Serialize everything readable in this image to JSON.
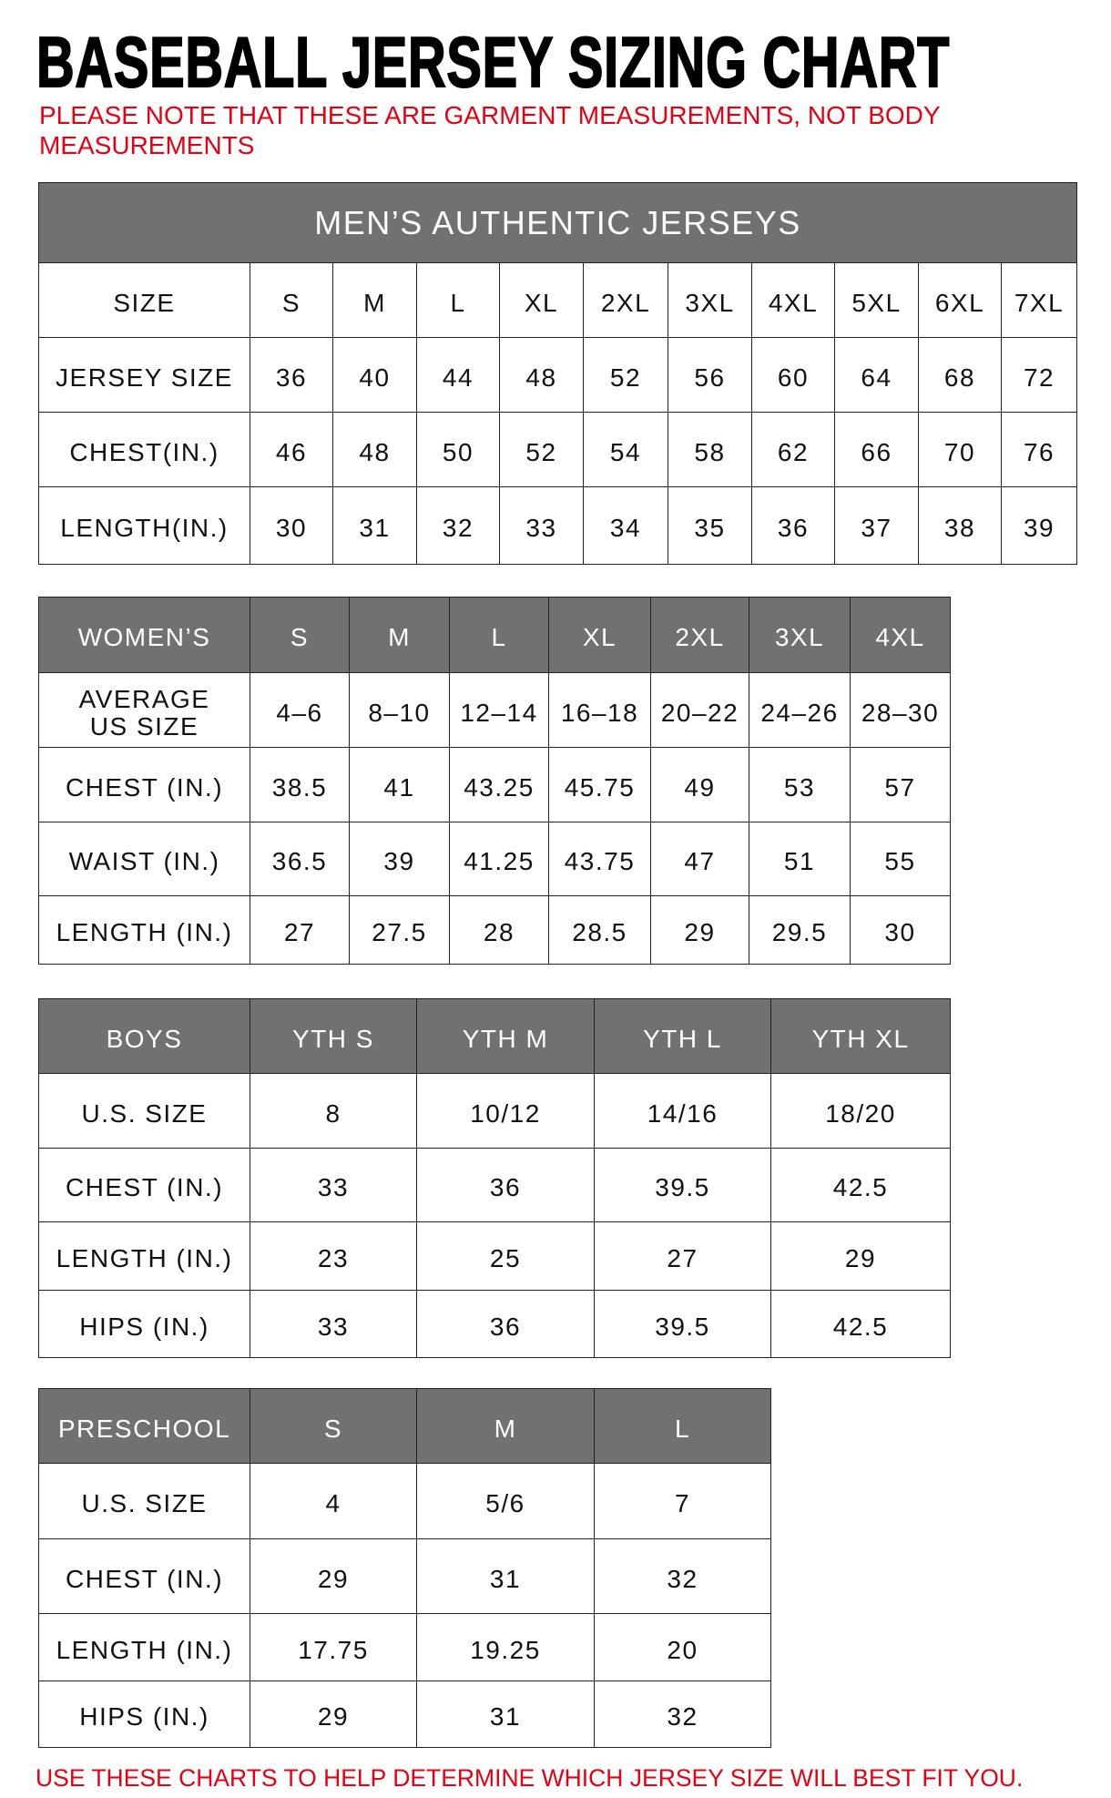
{
  "title": "BASEBALL JERSEY SIZING CHART",
  "note": "PLEASE NOTE THAT THESE ARE GARMENT MEASUREMENTS, NOT BODY MEASUREMENTS",
  "footer": "USE THESE CHARTS TO HELP DETERMINE WHICH JERSEY SIZE WILL BEST FIT YOU.",
  "colors": {
    "header_gray": "#717171",
    "note_red": "#e60012"
  },
  "tables": [
    {
      "id": "mens",
      "banner": "MEN’S AUTHENTIC JERSEYS",
      "header_shaded": false,
      "rows": [
        [
          "SIZE",
          "S",
          "M",
          "L",
          "XL",
          "2XL",
          "3XL",
          "4XL",
          "5XL",
          "6XL",
          "7XL"
        ],
        [
          "JERSEY SIZE",
          "36",
          "40",
          "44",
          "48",
          "52",
          "56",
          "60",
          "64",
          "68",
          "72"
        ],
        [
          "CHEST(IN.)",
          "46",
          "48",
          "50",
          "52",
          "54",
          "58",
          "62",
          "66",
          "70",
          "76"
        ],
        [
          "LENGTH(IN.)",
          "30",
          "31",
          "32",
          "33",
          "34",
          "35",
          "36",
          "37",
          "38",
          "39"
        ]
      ]
    },
    {
      "id": "womens",
      "header_shaded": true,
      "rows": [
        [
          "WOMEN’S",
          "S",
          "M",
          "L",
          "XL",
          "2XL",
          "3XL",
          "4XL"
        ],
        [
          "AVERAGE\nUS SIZE",
          "4–6",
          "8–10",
          "12–14",
          "16–18",
          "20–22",
          "24–26",
          "28–30"
        ],
        [
          "CHEST (IN.)",
          "38.5",
          "41",
          "43.25",
          "45.75",
          "49",
          "53",
          "57"
        ],
        [
          "WAIST (IN.)",
          "36.5",
          "39",
          "41.25",
          "43.75",
          "47",
          "51",
          "55"
        ],
        [
          "LENGTH (IN.)",
          "27",
          "27.5",
          "28",
          "28.5",
          "29",
          "29.5",
          "30"
        ]
      ]
    },
    {
      "id": "boys",
      "header_shaded": true,
      "rows": [
        [
          "BOYS",
          "YTH S",
          "YTH M",
          "YTH L",
          "YTH XL"
        ],
        [
          "U.S. SIZE",
          "8",
          "10/12",
          "14/16",
          "18/20"
        ],
        [
          "CHEST (IN.)",
          "33",
          "36",
          "39.5",
          "42.5"
        ],
        [
          "LENGTH (IN.)",
          "23",
          "25",
          "27",
          "29"
        ],
        [
          "HIPS (IN.)",
          "33",
          "36",
          "39.5",
          "42.5"
        ]
      ]
    },
    {
      "id": "preschool",
      "header_shaded": true,
      "rows": [
        [
          "PRESCHOOL",
          "S",
          "M",
          "L"
        ],
        [
          "U.S. SIZE",
          "4",
          "5/6",
          "7"
        ],
        [
          "CHEST (IN.)",
          "29",
          "31",
          "32"
        ],
        [
          "LENGTH (IN.)",
          "17.75",
          "19.25",
          "20"
        ],
        [
          "HIPS (IN.)",
          "29",
          "31",
          "32"
        ]
      ]
    }
  ]
}
